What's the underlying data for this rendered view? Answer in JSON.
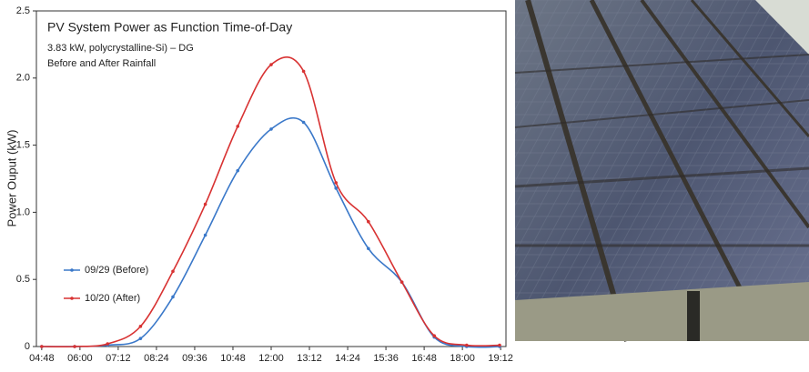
{
  "chart_data": {
    "type": "line",
    "title": "PV System Power as Function Time-of-Day",
    "subtitle": "3.83 kW, polycrystalline-Si) – DG",
    "annotation": "Before and After Rainfall",
    "ylabel": "Power Ouput (kW)",
    "x": [
      288,
      350,
      412,
      474,
      535,
      596,
      657,
      720,
      781,
      842,
      903,
      966,
      1027,
      1088,
      1150
    ],
    "series": [
      {
        "name": "09/29 (Before)",
        "color": "#3a78c9",
        "values": [
          0,
          0,
          0.01,
          0.06,
          0.37,
          0.83,
          1.31,
          1.62,
          1.67,
          1.18,
          0.73,
          0.48,
          0.07,
          0,
          0
        ]
      },
      {
        "name": "10/20 (After)",
        "color": "#d83232",
        "values": [
          0,
          0,
          0.02,
          0.15,
          0.56,
          1.06,
          1.64,
          2.1,
          2.05,
          1.22,
          0.93,
          0.48,
          0.08,
          0.01,
          0.01
        ]
      }
    ],
    "xlim": [
      278,
      1162
    ],
    "xticks": [
      {
        "value": 288,
        "label": "04:48"
      },
      {
        "value": 360,
        "label": "06:00"
      },
      {
        "value": 432,
        "label": "07:12"
      },
      {
        "value": 504,
        "label": "08:24"
      },
      {
        "value": 576,
        "label": "09:36"
      },
      {
        "value": 648,
        "label": "10:48"
      },
      {
        "value": 720,
        "label": "12:00"
      },
      {
        "value": 792,
        "label": "13:12"
      },
      {
        "value": 864,
        "label": "14:24"
      },
      {
        "value": 936,
        "label": "15:36"
      },
      {
        "value": 1008,
        "label": "16:48"
      },
      {
        "value": 1080,
        "label": "18:00"
      },
      {
        "value": 1152,
        "label": "19:12"
      }
    ],
    "ylim": [
      0,
      2.5
    ],
    "yticks": [
      0,
      0.5,
      {
        "value": 1,
        "label": "1.0"
      },
      1.5,
      {
        "value": 2,
        "label": "2.0"
      },
      2.5
    ],
    "legend": "lower left",
    "smooth": true
  }
}
